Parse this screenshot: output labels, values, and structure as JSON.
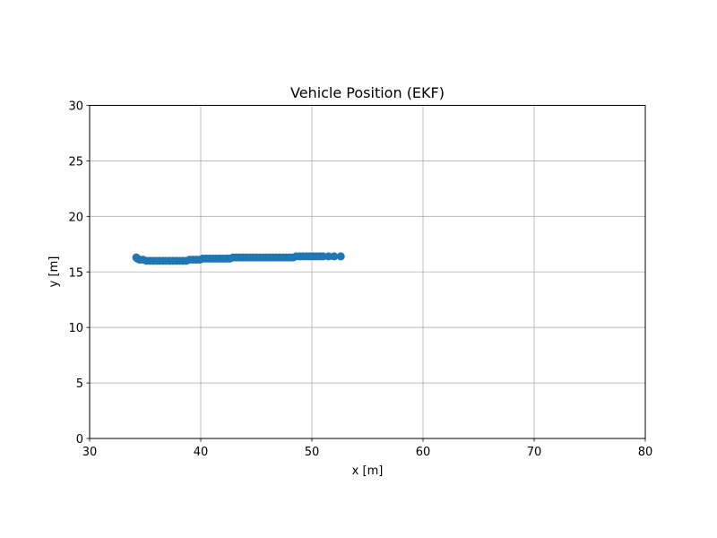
{
  "chart_data": {
    "type": "scatter",
    "title": "Vehicle Position (EKF)",
    "xlabel": "x [m]",
    "ylabel": "y [m]",
    "xlim": [
      30,
      80
    ],
    "ylim": [
      0,
      30
    ],
    "xticks": [
      30,
      40,
      50,
      60,
      70,
      80
    ],
    "yticks": [
      0,
      5,
      10,
      15,
      20,
      25,
      30
    ],
    "grid": true,
    "series": [
      {
        "color": "#1f77b4",
        "x": [
          34.2,
          34.3,
          34.5,
          34.8,
          35.1,
          35.4,
          35.7,
          36.0,
          36.3,
          36.6,
          36.9,
          37.2,
          37.5,
          37.8,
          38.1,
          38.4,
          38.7,
          39.0,
          39.3,
          39.6,
          39.9,
          40.2,
          40.5,
          40.8,
          41.1,
          41.4,
          41.7,
          42.0,
          42.3,
          42.6,
          42.9,
          43.2,
          43.5,
          43.8,
          44.1,
          44.4,
          44.7,
          45.0,
          45.3,
          45.6,
          45.9,
          46.2,
          46.5,
          46.8,
          47.1,
          47.4,
          47.7,
          48.0,
          48.3,
          48.6,
          48.9,
          49.2,
          49.5,
          49.8,
          50.1,
          50.4,
          50.7,
          51.0,
          51.5,
          52.0,
          52.6
        ],
        "y": [
          16.3,
          16.2,
          16.1,
          16.1,
          16.0,
          16.0,
          16.0,
          16.0,
          16.0,
          16.0,
          16.0,
          16.0,
          16.0,
          16.0,
          16.0,
          16.0,
          16.0,
          16.1,
          16.1,
          16.1,
          16.1,
          16.2,
          16.2,
          16.2,
          16.2,
          16.2,
          16.2,
          16.2,
          16.2,
          16.2,
          16.3,
          16.3,
          16.3,
          16.3,
          16.3,
          16.3,
          16.3,
          16.3,
          16.3,
          16.3,
          16.3,
          16.3,
          16.3,
          16.3,
          16.3,
          16.3,
          16.3,
          16.3,
          16.3,
          16.4,
          16.4,
          16.4,
          16.4,
          16.4,
          16.4,
          16.4,
          16.4,
          16.4,
          16.4,
          16.4,
          16.4
        ]
      }
    ]
  }
}
